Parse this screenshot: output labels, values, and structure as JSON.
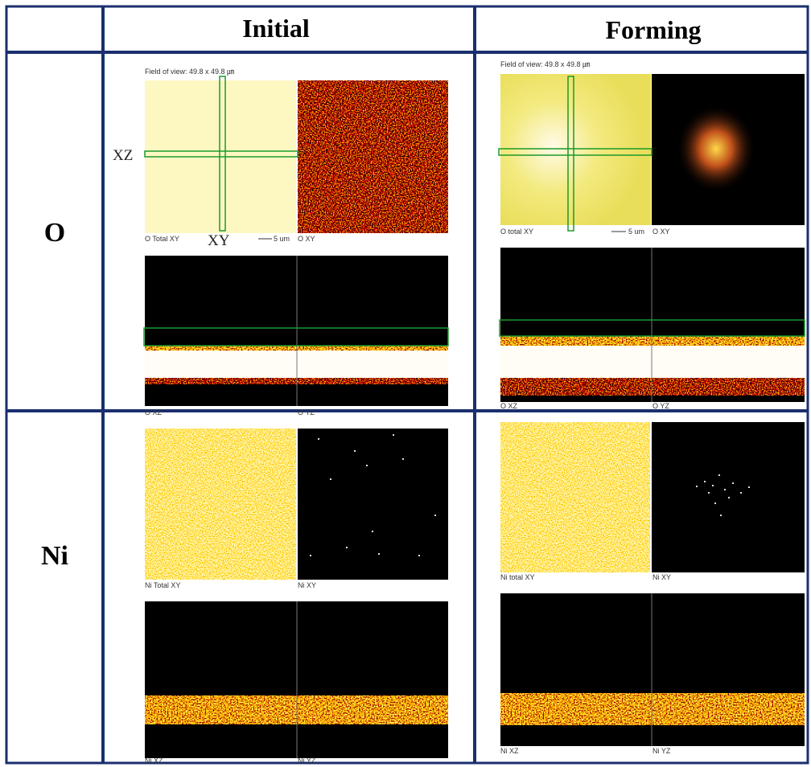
{
  "header": {
    "columns": [
      "Initial",
      "Forming"
    ]
  },
  "rows": [
    {
      "label": "O",
      "cells": [
        {
          "field_of_view": "Field of view: 49.8 x 49.8 ㎛",
          "total_xy": "O Total XY",
          "scale_bar": "5 um",
          "xy": "O XY",
          "xz": "O XZ",
          "yz": "O YZ",
          "cross_labels": [
            "XZ",
            "XY"
          ]
        },
        {
          "field_of_view": "Field of view: 49.8 x 49.8 ㎛",
          "total_xy": "O total XY",
          "scale_bar": "5 um",
          "xy": "O XY",
          "xz": "O XZ",
          "yz": "O YZ"
        }
      ]
    },
    {
      "label": "Ni",
      "cells": [
        {
          "total_xy": "Ni Total XY",
          "xy": "Ni XY",
          "xz": "Ni XZ",
          "yz": "Ni YZ"
        },
        {
          "total_xy": "Ni total XY",
          "xy": "Ni XY",
          "xz": "Ni XZ",
          "yz": "Ni YZ"
        }
      ]
    }
  ]
}
